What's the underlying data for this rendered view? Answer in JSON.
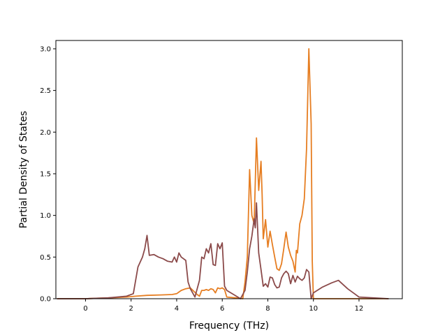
{
  "chart_data": {
    "type": "line",
    "title": "",
    "xlabel": "Frequency (THz)",
    "ylabel": "Partial Density of States",
    "xlim": [
      -1.3,
      13.9
    ],
    "ylim": [
      0,
      3.1
    ],
    "xticks": [
      0,
      2,
      4,
      6,
      8,
      10,
      12
    ],
    "yticks": [
      0.0,
      0.5,
      1.0,
      1.5,
      2.0,
      2.5,
      3.0
    ],
    "xtick_labels": [
      "0",
      "2",
      "4",
      "6",
      "8",
      "10",
      "12"
    ],
    "ytick_labels": [
      "0.0",
      "0.5",
      "1.0",
      "1.5",
      "2.0",
      "2.5",
      "3.0"
    ],
    "grid": false,
    "legend": "none",
    "series": [
      {
        "color": "#e67e22",
        "x": [
          -1.25,
          0.0,
          1.0,
          1.8,
          2.2,
          2.7,
          3.3,
          3.8,
          4.0,
          4.2,
          4.4,
          4.6,
          4.9,
          5.0,
          5.1,
          5.2,
          5.3,
          5.4,
          5.5,
          5.6,
          5.7,
          5.8,
          5.9,
          6.0,
          6.1,
          6.2,
          6.6,
          6.9,
          7.0,
          7.1,
          7.2,
          7.3,
          7.4,
          7.5,
          7.6,
          7.7,
          7.75,
          7.8,
          7.9,
          8.0,
          8.1,
          8.2,
          8.3,
          8.4,
          8.5,
          8.6,
          8.7,
          8.8,
          8.9,
          9.0,
          9.1,
          9.2,
          9.25,
          9.3,
          9.4,
          9.5,
          9.6,
          9.7,
          9.8,
          9.9,
          9.95,
          10.0,
          12.0,
          13.3
        ],
        "values": [
          0,
          0,
          0.01,
          0.02,
          0.03,
          0.04,
          0.045,
          0.05,
          0.06,
          0.1,
          0.12,
          0.13,
          0.05,
          0.03,
          0.1,
          0.1,
          0.11,
          0.1,
          0.12,
          0.11,
          0.07,
          0.13,
          0.12,
          0.13,
          0.11,
          0.02,
          0.01,
          0.0,
          0.2,
          0.5,
          1.55,
          1.0,
          0.9,
          1.93,
          1.3,
          1.65,
          1.25,
          0.72,
          0.95,
          0.62,
          0.81,
          0.65,
          0.5,
          0.36,
          0.34,
          0.42,
          0.6,
          0.8,
          0.62,
          0.52,
          0.45,
          0.32,
          0.58,
          0.55,
          0.9,
          1.0,
          1.2,
          1.8,
          3.0,
          2.1,
          0.45,
          0.0,
          0.0,
          0.0
        ]
      },
      {
        "color": "#8b4a4a",
        "x": [
          -1.25,
          0.0,
          1.0,
          1.8,
          2.1,
          2.3,
          2.5,
          2.6,
          2.7,
          2.8,
          3.0,
          3.2,
          3.4,
          3.6,
          3.8,
          3.9,
          4.0,
          4.1,
          4.2,
          4.4,
          4.5,
          4.6,
          4.8,
          5.0,
          5.1,
          5.2,
          5.3,
          5.4,
          5.5,
          5.6,
          5.7,
          5.8,
          5.9,
          6.0,
          6.1,
          6.2,
          6.5,
          6.8,
          7.0,
          7.1,
          7.2,
          7.3,
          7.4,
          7.45,
          7.5,
          7.6,
          7.7,
          7.8,
          7.9,
          8.0,
          8.1,
          8.2,
          8.3,
          8.4,
          8.5,
          8.6,
          8.7,
          8.8,
          8.9,
          9.0,
          9.1,
          9.2,
          9.3,
          9.4,
          9.5,
          9.6,
          9.7,
          9.8,
          9.9,
          10.0,
          10.4,
          10.8,
          11.1,
          11.5,
          11.8,
          12.0,
          13.3
        ],
        "values": [
          0,
          0,
          0.01,
          0.03,
          0.06,
          0.38,
          0.5,
          0.6,
          0.76,
          0.52,
          0.53,
          0.5,
          0.48,
          0.45,
          0.44,
          0.5,
          0.44,
          0.55,
          0.5,
          0.46,
          0.2,
          0.12,
          0.02,
          0.22,
          0.5,
          0.48,
          0.6,
          0.55,
          0.66,
          0.41,
          0.4,
          0.66,
          0.6,
          0.67,
          0.15,
          0.1,
          0.05,
          0.0,
          0.1,
          0.32,
          0.6,
          0.75,
          0.96,
          0.85,
          1.15,
          0.55,
          0.35,
          0.15,
          0.18,
          0.14,
          0.26,
          0.25,
          0.17,
          0.13,
          0.14,
          0.25,
          0.3,
          0.33,
          0.3,
          0.18,
          0.28,
          0.2,
          0.27,
          0.24,
          0.22,
          0.25,
          0.35,
          0.32,
          0.0,
          0.07,
          0.14,
          0.19,
          0.22,
          0.12,
          0.06,
          0.02,
          0.0
        ]
      }
    ]
  }
}
